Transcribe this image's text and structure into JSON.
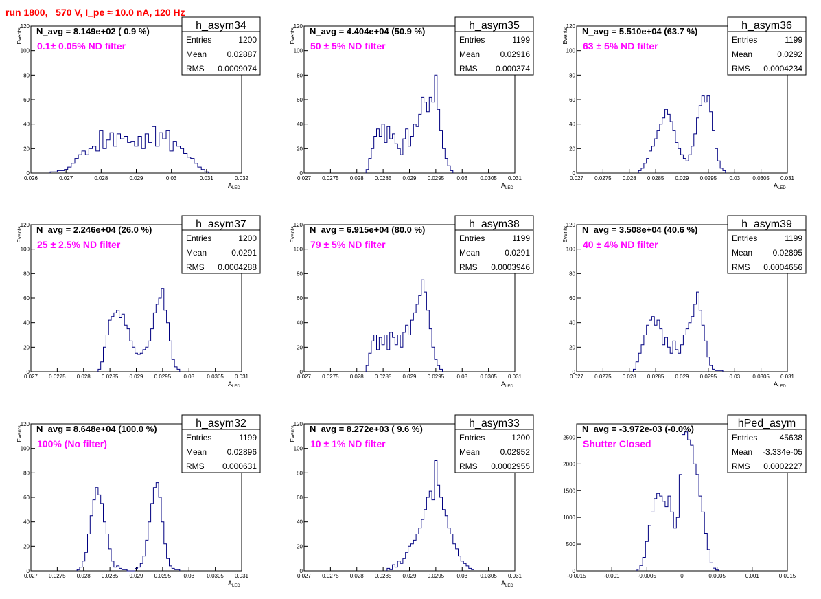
{
  "run_title": "run 1800,   570 V, I_pe ≈ 10.0 nA, 120 Hz",
  "colors": {
    "histogram": "#000080",
    "annotation": "#ff00ff",
    "title": "#ff0000",
    "frame": "#000000"
  },
  "stats_labels": {
    "entries": "Entries",
    "mean": "Mean",
    "rms": "RMS"
  },
  "chart_data": [
    {
      "type": "histogram",
      "name": "h_asym34",
      "header": "N_avg = 8.149e+02 ( 0.9 %)",
      "annotation": "0.1± 0.05% ND filter",
      "stats": {
        "entries": "1200",
        "mean": "0.02887",
        "rms": "0.0009074"
      },
      "xlabel": "A",
      "xlabel_sub": "LED",
      "ylabel": "Events",
      "xlim": [
        0.026,
        0.032
      ],
      "ylim": [
        0,
        120
      ],
      "xticks": [
        0.026,
        0.027,
        0.028,
        0.029,
        0.03,
        0.031,
        0.032
      ],
      "xtick_labels": [
        "0.026",
        "0.027",
        "0.028",
        "0.029",
        "0.03",
        "0.031",
        "0.032"
      ],
      "yticks": [
        0,
        20,
        40,
        60,
        80,
        100,
        120
      ],
      "x": [
        0.0266,
        0.0267,
        0.0268,
        0.0269,
        0.027,
        0.0271,
        0.0272,
        0.0273,
        0.0274,
        0.0275,
        0.0276,
        0.0277,
        0.0278,
        0.0279,
        0.028,
        0.0281,
        0.0282,
        0.0283,
        0.0284,
        0.0285,
        0.0286,
        0.0287,
        0.0288,
        0.0289,
        0.029,
        0.0291,
        0.0292,
        0.0293,
        0.0294,
        0.0295,
        0.0296,
        0.0297,
        0.0298,
        0.0299,
        0.03,
        0.0301,
        0.0302,
        0.0303,
        0.0304,
        0.0305,
        0.0306,
        0.0307,
        0.0308,
        0.0309,
        0.031
      ],
      "values": [
        1,
        1,
        2,
        2,
        3,
        5,
        8,
        12,
        15,
        18,
        15,
        20,
        22,
        18,
        35,
        20,
        27,
        33,
        22,
        32,
        28,
        30,
        25,
        26,
        22,
        30,
        20,
        32,
        25,
        38,
        22,
        33,
        28,
        35,
        18,
        26,
        22,
        20,
        16,
        13,
        12,
        8,
        5,
        3,
        1
      ]
    },
    {
      "type": "histogram",
      "name": "h_asym35",
      "header": "N_avg = 4.404e+04 (50.9 %)",
      "annotation": " 50 ± 5% ND filter",
      "stats": {
        "entries": "1199",
        "mean": "0.02916",
        "rms": "0.000374"
      },
      "xlabel": "A",
      "xlabel_sub": "LED",
      "ylabel": "Events",
      "xlim": [
        0.027,
        0.031
      ],
      "ylim": [
        0,
        120
      ],
      "xticks": [
        0.027,
        0.0275,
        0.028,
        0.0285,
        0.029,
        0.0295,
        0.03,
        0.0305,
        0.031
      ],
      "xtick_labels": [
        "0.027",
        "0.0275",
        "0.028",
        "0.0285",
        "0.029",
        "0.0295",
        "0.03",
        "0.0305",
        "0.031"
      ],
      "yticks": [
        0,
        20,
        40,
        60,
        80,
        100,
        120
      ],
      "x": [
        0.0282,
        0.02825,
        0.0283,
        0.02835,
        0.0284,
        0.02845,
        0.0285,
        0.02855,
        0.0286,
        0.02865,
        0.0287,
        0.02875,
        0.0288,
        0.02885,
        0.0289,
        0.02895,
        0.029,
        0.02905,
        0.0291,
        0.02915,
        0.0292,
        0.02925,
        0.0293,
        0.02935,
        0.0294,
        0.02945,
        0.0295,
        0.02955,
        0.0296,
        0.02965,
        0.0297,
        0.02975,
        0.0298
      ],
      "values": [
        3,
        12,
        20,
        30,
        36,
        30,
        40,
        25,
        38,
        28,
        32,
        24,
        20,
        15,
        28,
        36,
        22,
        30,
        40,
        38,
        48,
        62,
        58,
        50,
        62,
        58,
        80,
        52,
        35,
        20,
        12,
        6,
        2
      ]
    },
    {
      "type": "histogram",
      "name": "h_asym36",
      "header": "N_avg = 5.510e+04 (63.7 %)",
      "annotation": " 63 ± 5% ND filter",
      "stats": {
        "entries": "1199",
        "mean": "0.0292",
        "rms": "0.0004234"
      },
      "xlabel": "A",
      "xlabel_sub": "LED",
      "ylabel": "Events",
      "xlim": [
        0.027,
        0.031
      ],
      "ylim": [
        0,
        120
      ],
      "xticks": [
        0.027,
        0.0275,
        0.028,
        0.0285,
        0.029,
        0.0295,
        0.03,
        0.0305,
        0.031
      ],
      "xtick_labels": [
        "0.027",
        "0.0275",
        "0.028",
        "0.0285",
        "0.029",
        "0.0295",
        "0.03",
        "0.0305",
        "0.031"
      ],
      "yticks": [
        0,
        20,
        40,
        60,
        80,
        100,
        120
      ],
      "x": [
        0.0282,
        0.02825,
        0.0283,
        0.02835,
        0.0284,
        0.02845,
        0.0285,
        0.02855,
        0.0286,
        0.02865,
        0.0287,
        0.02875,
        0.0288,
        0.02885,
        0.0289,
        0.02895,
        0.029,
        0.02905,
        0.0291,
        0.02915,
        0.0292,
        0.02925,
        0.0293,
        0.02935,
        0.0294,
        0.02945,
        0.0295,
        0.02955,
        0.0296,
        0.02965,
        0.0297,
        0.02975,
        0.0298
      ],
      "values": [
        2,
        4,
        8,
        12,
        18,
        22,
        28,
        35,
        40,
        45,
        52,
        48,
        42,
        35,
        25,
        20,
        15,
        12,
        10,
        15,
        22,
        32,
        45,
        55,
        63,
        58,
        63,
        50,
        35,
        20,
        10,
        4,
        2
      ]
    },
    {
      "type": "histogram",
      "name": "h_asym37",
      "header": "N_avg = 2.246e+04 (26.0 %)",
      "annotation": " 25 ± 2.5% ND filter",
      "stats": {
        "entries": "1200",
        "mean": "0.0291",
        "rms": "0.0004288"
      },
      "xlabel": "A",
      "xlabel_sub": "LED",
      "ylabel": "Events",
      "xlim": [
        0.027,
        0.031
      ],
      "ylim": [
        0,
        120
      ],
      "xticks": [
        0.027,
        0.0275,
        0.028,
        0.0285,
        0.029,
        0.0295,
        0.03,
        0.0305,
        0.031
      ],
      "xtick_labels": [
        "0.027",
        "0.0275",
        "0.028",
        "0.0285",
        "0.029",
        "0.0295",
        "0.03",
        "0.0305",
        "0.031"
      ],
      "yticks": [
        0,
        20,
        40,
        60,
        80,
        100,
        120
      ],
      "x": [
        0.0283,
        0.02835,
        0.0284,
        0.02845,
        0.0285,
        0.02855,
        0.0286,
        0.02865,
        0.0287,
        0.02875,
        0.0288,
        0.02885,
        0.0289,
        0.02895,
        0.029,
        0.02905,
        0.0291,
        0.02915,
        0.0292,
        0.02925,
        0.0293,
        0.02935,
        0.0294,
        0.02945,
        0.0295,
        0.02955,
        0.0296,
        0.02965,
        0.0297,
        0.02975,
        0.0298
      ],
      "values": [
        2,
        8,
        20,
        30,
        42,
        45,
        48,
        50,
        44,
        47,
        38,
        35,
        25,
        20,
        15,
        14,
        15,
        18,
        20,
        25,
        35,
        48,
        55,
        60,
        68,
        50,
        40,
        25,
        10,
        4,
        2
      ]
    },
    {
      "type": "histogram",
      "name": "h_asym38",
      "header": "N_avg = 6.915e+04 (80.0 %)",
      "annotation": " 79 ± 5% ND filter",
      "stats": {
        "entries": "1199",
        "mean": "0.0291",
        "rms": "0.0003946"
      },
      "xlabel": "A",
      "xlabel_sub": "LED",
      "ylabel": "Events",
      "xlim": [
        0.027,
        0.031
      ],
      "ylim": [
        0,
        120
      ],
      "xticks": [
        0.027,
        0.0275,
        0.028,
        0.0285,
        0.029,
        0.0295,
        0.03,
        0.0305,
        0.031
      ],
      "xtick_labels": [
        "0.027",
        "0.0275",
        "0.028",
        "0.0285",
        "0.029",
        "0.0295",
        "0.03",
        "0.0305",
        "0.031"
      ],
      "yticks": [
        0,
        20,
        40,
        60,
        80,
        100,
        120
      ],
      "x": [
        0.0282,
        0.02825,
        0.0283,
        0.02835,
        0.0284,
        0.02845,
        0.0285,
        0.02855,
        0.0286,
        0.02865,
        0.0287,
        0.02875,
        0.0288,
        0.02885,
        0.0289,
        0.02895,
        0.029,
        0.02905,
        0.0291,
        0.02915,
        0.0292,
        0.02925,
        0.0293,
        0.02935,
        0.0294,
        0.02945,
        0.0295,
        0.02955,
        0.0296
      ],
      "values": [
        5,
        15,
        25,
        30,
        18,
        28,
        22,
        30,
        18,
        32,
        28,
        22,
        30,
        20,
        32,
        38,
        30,
        42,
        48,
        55,
        62,
        75,
        65,
        50,
        35,
        20,
        10,
        5,
        2
      ]
    },
    {
      "type": "histogram",
      "name": "h_asym39",
      "header": "N_avg = 3.508e+04 (40.6 %)",
      "annotation": " 40 ± 4% ND filter",
      "stats": {
        "entries": "1199",
        "mean": "0.02895",
        "rms": "0.0004656"
      },
      "xlabel": "A",
      "xlabel_sub": "LED",
      "ylabel": "Events",
      "xlim": [
        0.027,
        0.031
      ],
      "ylim": [
        0,
        120
      ],
      "xticks": [
        0.027,
        0.0275,
        0.028,
        0.0285,
        0.029,
        0.0295,
        0.03,
        0.0305,
        0.031
      ],
      "xtick_labels": [
        "0.027",
        "0.0275",
        "0.028",
        "0.0285",
        "0.029",
        "0.0295",
        "0.03",
        "0.0305",
        "0.031"
      ],
      "yticks": [
        0,
        20,
        40,
        60,
        80,
        100,
        120
      ],
      "x": [
        0.0281,
        0.02815,
        0.0282,
        0.02825,
        0.0283,
        0.02835,
        0.0284,
        0.02845,
        0.0285,
        0.02855,
        0.0286,
        0.02865,
        0.0287,
        0.02875,
        0.0288,
        0.02885,
        0.0289,
        0.02895,
        0.029,
        0.02905,
        0.0291,
        0.02915,
        0.0292,
        0.02925,
        0.0293,
        0.02935,
        0.0294,
        0.02945,
        0.0295,
        0.02955,
        0.0296,
        0.02965,
        0.0297,
        0.02975
      ],
      "values": [
        2,
        8,
        15,
        22,
        30,
        38,
        42,
        45,
        38,
        42,
        35,
        22,
        28,
        20,
        15,
        25,
        18,
        15,
        22,
        30,
        35,
        40,
        45,
        55,
        65,
        50,
        38,
        25,
        12,
        5,
        2,
        1,
        1,
        1
      ]
    },
    {
      "type": "histogram",
      "name": "h_asym32",
      "header": "N_avg = 8.648e+04 (100.0 %)",
      "annotation": " 100% (No filter)",
      "stats": {
        "entries": "1199",
        "mean": "0.02896",
        "rms": "0.000631"
      },
      "xlabel": "A",
      "xlabel_sub": "LED",
      "ylabel": "Events",
      "xlim": [
        0.027,
        0.031
      ],
      "ylim": [
        0,
        120
      ],
      "xticks": [
        0.027,
        0.0275,
        0.028,
        0.0285,
        0.029,
        0.0295,
        0.03,
        0.0305,
        0.031
      ],
      "xtick_labels": [
        "0.027",
        "0.0275",
        "0.028",
        "0.0285",
        "0.029",
        "0.0295",
        "0.03",
        "0.0305",
        "0.031"
      ],
      "yticks": [
        0,
        20,
        40,
        60,
        80,
        100,
        120
      ],
      "x": [
        0.0279,
        0.02795,
        0.028,
        0.02805,
        0.0281,
        0.02815,
        0.0282,
        0.02825,
        0.0283,
        0.02835,
        0.0284,
        0.02845,
        0.0285,
        0.02855,
        0.0286,
        0.02865,
        0.0287,
        0.02875,
        0.0288,
        0.02885,
        0.0289,
        0.02895,
        0.029,
        0.02905,
        0.0291,
        0.02915,
        0.0292,
        0.02925,
        0.0293,
        0.02935,
        0.0294,
        0.02945,
        0.0295,
        0.02955,
        0.0296,
        0.02965,
        0.0297,
        0.02975,
        0.0298
      ],
      "values": [
        1,
        3,
        8,
        15,
        30,
        45,
        58,
        68,
        62,
        55,
        40,
        30,
        18,
        8,
        3,
        4,
        2,
        1,
        1,
        0,
        0,
        0,
        2,
        3,
        6,
        12,
        25,
        40,
        55,
        68,
        72,
        60,
        40,
        22,
        10,
        4,
        2,
        1,
        1
      ]
    },
    {
      "type": "histogram",
      "name": "h_asym33",
      "header": "N_avg = 8.272e+03 ( 9.6 %)",
      "annotation": " 10 ± 1% ND filter",
      "stats": {
        "entries": "1200",
        "mean": "0.02952",
        "rms": "0.0002955"
      },
      "xlabel": "A",
      "xlabel_sub": "LED",
      "ylabel": "Events",
      "xlim": [
        0.027,
        0.031
      ],
      "ylim": [
        0,
        120
      ],
      "xticks": [
        0.027,
        0.0275,
        0.028,
        0.0285,
        0.029,
        0.0295,
        0.03,
        0.0305,
        0.031
      ],
      "xtick_labels": [
        "0.027",
        "0.0275",
        "0.028",
        "0.0285",
        "0.029",
        "0.0295",
        "0.03",
        "0.0305",
        "0.031"
      ],
      "yticks": [
        0,
        20,
        40,
        60,
        80,
        100,
        120
      ],
      "x": [
        0.0286,
        0.02865,
        0.0287,
        0.02875,
        0.0288,
        0.02885,
        0.0289,
        0.02895,
        0.029,
        0.02905,
        0.0291,
        0.02915,
        0.0292,
        0.02925,
        0.0293,
        0.02935,
        0.0294,
        0.02945,
        0.0295,
        0.02955,
        0.0296,
        0.02965,
        0.0297,
        0.02975,
        0.0298,
        0.02985,
        0.0299,
        0.02995,
        0.03,
        0.03005,
        0.0301,
        0.03015,
        0.0302
      ],
      "values": [
        2,
        1,
        5,
        3,
        8,
        6,
        10,
        15,
        20,
        22,
        25,
        30,
        35,
        42,
        50,
        60,
        65,
        58,
        90,
        70,
        60,
        50,
        45,
        35,
        30,
        22,
        18,
        12,
        8,
        6,
        4,
        2,
        1
      ]
    },
    {
      "type": "histogram",
      "name": "hPed_asym",
      "header": "N_avg = -3.972e-03 (-0.0%)",
      "annotation": "Shutter Closed",
      "stats": {
        "entries": "45638",
        "mean": "-3.334e-05",
        "rms": "0.0002227"
      },
      "xlabel": "",
      "xlabel_sub": "",
      "ylabel": "",
      "xlim": [
        -0.0015,
        0.0015
      ],
      "ylim": [
        0,
        2750
      ],
      "xticks": [
        -0.0015,
        -0.001,
        -0.0005,
        0,
        0.0005,
        0.001,
        0.0015
      ],
      "xtick_labels": [
        "-0.0015",
        "-0.001",
        "-0.0005",
        "0",
        "0.0005",
        "0.001",
        "0.0015"
      ],
      "yticks": [
        0,
        500,
        1000,
        1500,
        2000,
        2500
      ],
      "x": [
        -0.00062,
        -0.00058,
        -0.00054,
        -0.0005,
        -0.00046,
        -0.00042,
        -0.00038,
        -0.00034,
        -0.0003,
        -0.00026,
        -0.00022,
        -0.00018,
        -0.00014,
        -0.0001,
        -6e-05,
        -2e-05,
        2e-05,
        6e-05,
        0.0001,
        0.00014,
        0.00018,
        0.00022,
        0.00026,
        0.0003,
        0.00034,
        0.00038,
        0.00042,
        0.00046,
        0.0005
      ],
      "values": [
        30,
        100,
        250,
        550,
        850,
        1100,
        1350,
        1450,
        1400,
        1300,
        1200,
        1400,
        1100,
        800,
        1000,
        1800,
        2550,
        2600,
        2450,
        2350,
        2000,
        1800,
        1400,
        1100,
        700,
        400,
        150,
        50,
        15
      ]
    }
  ]
}
